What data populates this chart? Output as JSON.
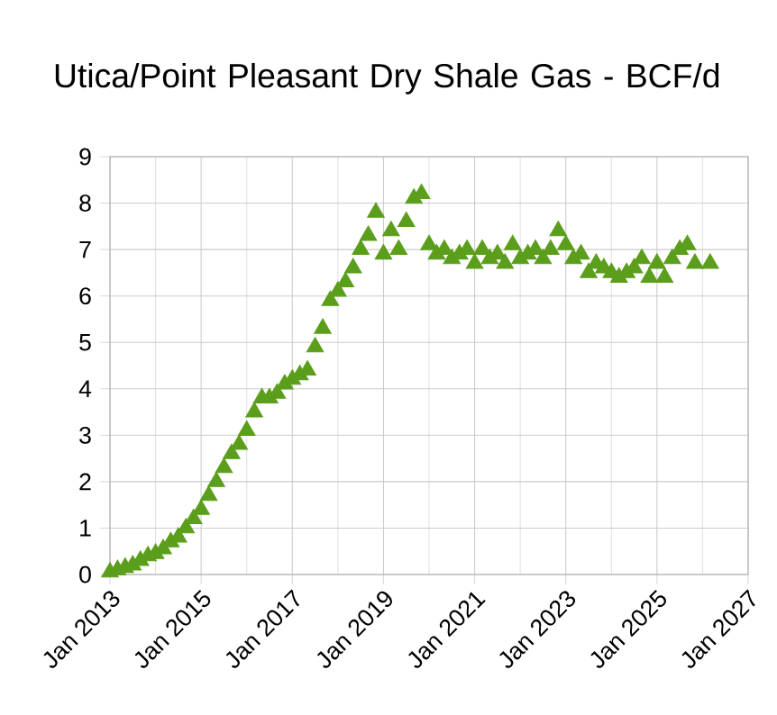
{
  "chart_data": {
    "type": "scatter",
    "title": "Utica/Point Pleasant Dry Shale Gas - BCF/d",
    "color": "#5b9e1c",
    "marker": "triangle",
    "grid": true,
    "x": [
      "2013-01",
      "2013-03",
      "2013-05",
      "2013-07",
      "2013-09",
      "2013-11",
      "2014-01",
      "2014-03",
      "2014-05",
      "2014-07",
      "2014-09",
      "2014-11",
      "2015-01",
      "2015-03",
      "2015-05",
      "2015-07",
      "2015-09",
      "2015-11",
      "2016-01",
      "2016-03",
      "2016-05",
      "2016-07",
      "2016-09",
      "2016-11",
      "2017-01",
      "2017-03",
      "2017-05",
      "2017-07",
      "2017-09",
      "2017-11",
      "2018-01",
      "2018-03",
      "2018-05",
      "2018-07",
      "2018-09",
      "2018-11",
      "2019-01",
      "2019-03",
      "2019-05",
      "2019-07",
      "2019-09",
      "2019-11",
      "2020-01",
      "2020-03",
      "2020-05",
      "2020-07",
      "2020-09",
      "2020-11",
      "2021-01",
      "2021-03",
      "2021-05",
      "2021-07",
      "2021-09",
      "2021-11",
      "2022-01",
      "2022-03",
      "2022-05",
      "2022-07",
      "2022-09",
      "2022-11",
      "2023-01",
      "2023-03",
      "2023-05",
      "2023-07",
      "2023-09",
      "2023-11",
      "2024-01",
      "2024-03",
      "2024-05",
      "2024-07",
      "2024-09",
      "2024-11",
      "2025-01",
      "2025-03",
      "2025-05",
      "2025-07",
      "2025-09",
      "2025-11",
      "2026-03"
    ],
    "values": [
      0.05,
      0.1,
      0.15,
      0.2,
      0.3,
      0.4,
      0.45,
      0.55,
      0.7,
      0.8,
      1.0,
      1.2,
      1.4,
      1.7,
      2.0,
      2.3,
      2.6,
      2.8,
      3.1,
      3.5,
      3.8,
      3.8,
      3.9,
      4.1,
      4.2,
      4.3,
      4.4,
      4.9,
      5.3,
      5.9,
      6.1,
      6.3,
      6.6,
      7.0,
      7.3,
      7.8,
      6.9,
      7.4,
      7.0,
      7.6,
      8.1,
      8.2,
      7.1,
      6.9,
      7.0,
      6.8,
      6.9,
      7.0,
      6.7,
      7.0,
      6.8,
      6.9,
      6.7,
      7.1,
      6.8,
      6.9,
      7.0,
      6.8,
      7.0,
      7.4,
      7.1,
      6.8,
      6.9,
      6.5,
      6.7,
      6.6,
      6.5,
      6.4,
      6.5,
      6.6,
      6.8,
      6.4,
      6.7,
      6.4,
      6.8,
      7.0,
      7.1,
      6.7,
      6.7
    ],
    "xlim": [
      "2013-01",
      "2027-01"
    ],
    "xticks": [
      {
        "value": "2013-01",
        "label": "Jan 2013"
      },
      {
        "value": "2015-01",
        "label": "Jan 2015"
      },
      {
        "value": "2017-01",
        "label": "Jan 2017"
      },
      {
        "value": "2019-01",
        "label": "Jan 2019"
      },
      {
        "value": "2021-01",
        "label": "Jan 2021"
      },
      {
        "value": "2023-01",
        "label": "Jan 2023"
      },
      {
        "value": "2025-01",
        "label": "Jan 2025"
      },
      {
        "value": "2027-01",
        "label": "Jan 2027"
      }
    ],
    "ylim": [
      0,
      9
    ],
    "yticks": [
      0,
      1,
      2,
      3,
      4,
      5,
      6,
      7,
      8,
      9
    ]
  }
}
